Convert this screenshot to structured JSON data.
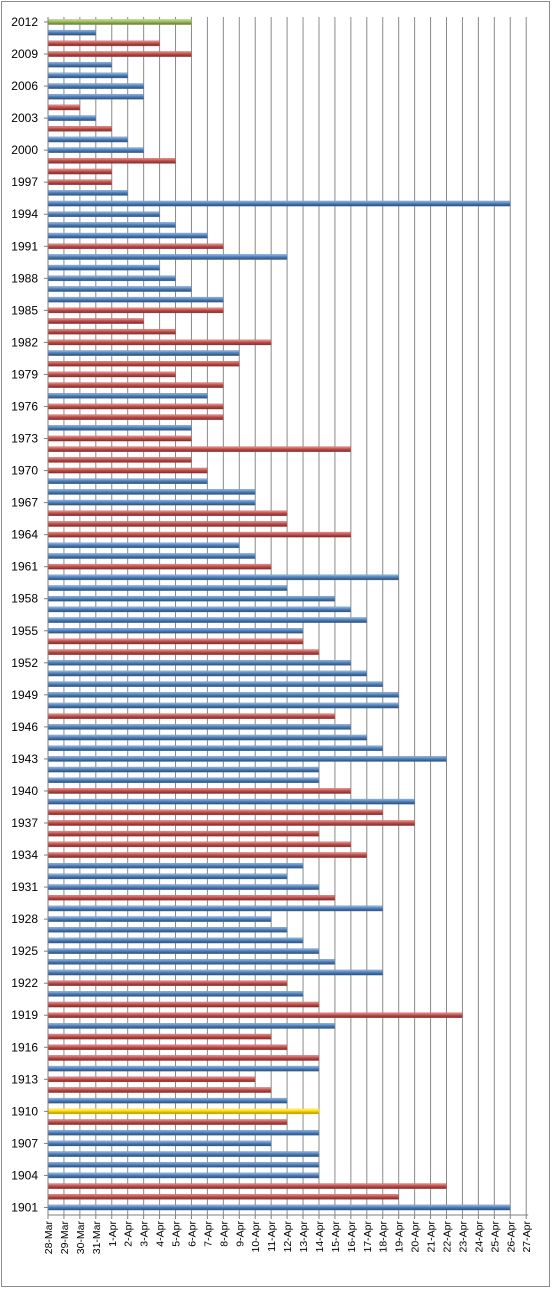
{
  "chart_data": {
    "type": "bar",
    "orientation": "horizontal",
    "grid": true,
    "legend": "none",
    "x_ticks": [
      "28-Mar",
      "29-Mar",
      "30-Mar",
      "31-Mar",
      "1-Apr",
      "2-Apr",
      "3-Apr",
      "4-Apr",
      "5-Apr",
      "6-Apr",
      "7-Apr",
      "8-Apr",
      "9-Apr",
      "10-Apr",
      "11-Apr",
      "12-Apr",
      "13-Apr",
      "14-Apr",
      "15-Apr",
      "16-Apr",
      "17-Apr",
      "18-Apr",
      "19-Apr",
      "20-Apr",
      "21-Apr",
      "22-Apr",
      "23-Apr",
      "24-Apr",
      "25-Apr",
      "26-Apr",
      "27-Apr"
    ],
    "y_tick_labels": [
      "2012",
      "2009",
      "2006",
      "2003",
      "2000",
      "1997",
      "1994",
      "1991",
      "1988",
      "1985",
      "1982",
      "1979",
      "1976",
      "1973",
      "1970",
      "1967",
      "1964",
      "1961",
      "1958",
      "1955",
      "1952",
      "1949",
      "1946",
      "1943",
      "1940",
      "1937",
      "1934",
      "1931",
      "1928",
      "1925",
      "1922",
      "1919",
      "1916",
      "1913",
      "1910",
      "1907",
      "1904",
      "1901"
    ],
    "colors": {
      "blue": "#4f81bd",
      "red": "#c0504d",
      "green": "#9bbb59",
      "yellow": "#ffd700"
    },
    "bars": [
      {
        "year": 1901,
        "date": "26-Apr",
        "color": "blue"
      },
      {
        "year": 1902,
        "date": "19-Apr",
        "color": "red"
      },
      {
        "year": 1903,
        "date": "22-Apr",
        "color": "red"
      },
      {
        "year": 1904,
        "date": "14-Apr",
        "color": "blue"
      },
      {
        "year": 1905,
        "date": "14-Apr",
        "color": "blue"
      },
      {
        "year": 1906,
        "date": "14-Apr",
        "color": "blue"
      },
      {
        "year": 1907,
        "date": "11-Apr",
        "color": "blue"
      },
      {
        "year": 1908,
        "date": "14-Apr",
        "color": "blue"
      },
      {
        "year": 1909,
        "date": "12-Apr",
        "color": "red"
      },
      {
        "year": 1910,
        "date": "14-Apr",
        "color": "yellow"
      },
      {
        "year": 1911,
        "date": "12-Apr",
        "color": "blue"
      },
      {
        "year": 1912,
        "date": "11-Apr",
        "color": "red"
      },
      {
        "year": 1913,
        "date": "10-Apr",
        "color": "red"
      },
      {
        "year": 1914,
        "date": "14-Apr",
        "color": "blue"
      },
      {
        "year": 1915,
        "date": "14-Apr",
        "color": "red"
      },
      {
        "year": 1916,
        "date": "12-Apr",
        "color": "red"
      },
      {
        "year": 1917,
        "date": "11-Apr",
        "color": "red"
      },
      {
        "year": 1918,
        "date": "15-Apr",
        "color": "blue"
      },
      {
        "year": 1919,
        "date": "23-Apr",
        "color": "red"
      },
      {
        "year": 1920,
        "date": "14-Apr",
        "color": "red"
      },
      {
        "year": 1921,
        "date": "13-Apr",
        "color": "blue"
      },
      {
        "year": 1922,
        "date": "12-Apr",
        "color": "red"
      },
      {
        "year": 1923,
        "date": "18-Apr",
        "color": "blue"
      },
      {
        "year": 1924,
        "date": "15-Apr",
        "color": "blue"
      },
      {
        "year": 1925,
        "date": "14-Apr",
        "color": "blue"
      },
      {
        "year": 1926,
        "date": "13-Apr",
        "color": "blue"
      },
      {
        "year": 1927,
        "date": "12-Apr",
        "color": "blue"
      },
      {
        "year": 1928,
        "date": "11-Apr",
        "color": "blue"
      },
      {
        "year": 1929,
        "date": "18-Apr",
        "color": "blue"
      },
      {
        "year": 1930,
        "date": "15-Apr",
        "color": "red"
      },
      {
        "year": 1931,
        "date": "14-Apr",
        "color": "blue"
      },
      {
        "year": 1932,
        "date": "12-Apr",
        "color": "blue"
      },
      {
        "year": 1933,
        "date": "13-Apr",
        "color": "blue"
      },
      {
        "year": 1934,
        "date": "17-Apr",
        "color": "red"
      },
      {
        "year": 1935,
        "date": "16-Apr",
        "color": "red"
      },
      {
        "year": 1936,
        "date": "14-Apr",
        "color": "red"
      },
      {
        "year": 1937,
        "date": "20-Apr",
        "color": "red"
      },
      {
        "year": 1938,
        "date": "18-Apr",
        "color": "red"
      },
      {
        "year": 1939,
        "date": "20-Apr",
        "color": "blue"
      },
      {
        "year": 1940,
        "date": "16-Apr",
        "color": "red"
      },
      {
        "year": 1941,
        "date": "14-Apr",
        "color": "blue"
      },
      {
        "year": 1942,
        "date": "14-Apr",
        "color": "blue"
      },
      {
        "year": 1943,
        "date": "22-Apr",
        "color": "blue"
      },
      {
        "year": 1944,
        "date": "18-Apr",
        "color": "blue"
      },
      {
        "year": 1945,
        "date": "17-Apr",
        "color": "blue"
      },
      {
        "year": 1946,
        "date": "16-Apr",
        "color": "blue"
      },
      {
        "year": 1947,
        "date": "15-Apr",
        "color": "red"
      },
      {
        "year": 1948,
        "date": "19-Apr",
        "color": "blue"
      },
      {
        "year": 1949,
        "date": "19-Apr",
        "color": "blue"
      },
      {
        "year": 1950,
        "date": "18-Apr",
        "color": "blue"
      },
      {
        "year": 1951,
        "date": "17-Apr",
        "color": "blue"
      },
      {
        "year": 1952,
        "date": "16-Apr",
        "color": "blue"
      },
      {
        "year": 1953,
        "date": "14-Apr",
        "color": "red"
      },
      {
        "year": 1954,
        "date": "13-Apr",
        "color": "red"
      },
      {
        "year": 1955,
        "date": "13-Apr",
        "color": "blue"
      },
      {
        "year": 1956,
        "date": "17-Apr",
        "color": "blue"
      },
      {
        "year": 1957,
        "date": "16-Apr",
        "color": "blue"
      },
      {
        "year": 1958,
        "date": "15-Apr",
        "color": "blue"
      },
      {
        "year": 1959,
        "date": "12-Apr",
        "color": "blue"
      },
      {
        "year": 1960,
        "date": "19-Apr",
        "color": "blue"
      },
      {
        "year": 1961,
        "date": "11-Apr",
        "color": "red"
      },
      {
        "year": 1962,
        "date": "10-Apr",
        "color": "blue"
      },
      {
        "year": 1963,
        "date": "9-Apr",
        "color": "blue"
      },
      {
        "year": 1964,
        "date": "16-Apr",
        "color": "red"
      },
      {
        "year": 1965,
        "date": "12-Apr",
        "color": "red"
      },
      {
        "year": 1966,
        "date": "12-Apr",
        "color": "red"
      },
      {
        "year": 1967,
        "date": "10-Apr",
        "color": "blue"
      },
      {
        "year": 1968,
        "date": "10-Apr",
        "color": "blue"
      },
      {
        "year": 1969,
        "date": "7-Apr",
        "color": "blue"
      },
      {
        "year": 1970,
        "date": "7-Apr",
        "color": "red"
      },
      {
        "year": 1971,
        "date": "6-Apr",
        "color": "red"
      },
      {
        "year": 1972,
        "date": "16-Apr",
        "color": "red"
      },
      {
        "year": 1973,
        "date": "6-Apr",
        "color": "red"
      },
      {
        "year": 1974,
        "date": "6-Apr",
        "color": "blue"
      },
      {
        "year": 1975,
        "date": "8-Apr",
        "color": "red"
      },
      {
        "year": 1976,
        "date": "8-Apr",
        "color": "red"
      },
      {
        "year": 1977,
        "date": "7-Apr",
        "color": "blue"
      },
      {
        "year": 1978,
        "date": "8-Apr",
        "color": "red"
      },
      {
        "year": 1979,
        "date": "5-Apr",
        "color": "red"
      },
      {
        "year": 1980,
        "date": "9-Apr",
        "color": "red"
      },
      {
        "year": 1981,
        "date": "9-Apr",
        "color": "blue"
      },
      {
        "year": 1982,
        "date": "11-Apr",
        "color": "red"
      },
      {
        "year": 1983,
        "date": "5-Apr",
        "color": "red"
      },
      {
        "year": 1984,
        "date": "3-Apr",
        "color": "red"
      },
      {
        "year": 1985,
        "date": "8-Apr",
        "color": "red"
      },
      {
        "year": 1986,
        "date": "8-Apr",
        "color": "blue"
      },
      {
        "year": 1987,
        "date": "6-Apr",
        "color": "blue"
      },
      {
        "year": 1988,
        "date": "5-Apr",
        "color": "blue"
      },
      {
        "year": 1989,
        "date": "4-Apr",
        "color": "blue"
      },
      {
        "year": 1990,
        "date": "12-Apr",
        "color": "blue"
      },
      {
        "year": 1991,
        "date": "8-Apr",
        "color": "red"
      },
      {
        "year": 1992,
        "date": "7-Apr",
        "color": "blue"
      },
      {
        "year": 1993,
        "date": "5-Apr",
        "color": "blue"
      },
      {
        "year": 1994,
        "date": "4-Apr",
        "color": "blue"
      },
      {
        "year": 1995,
        "date": "26-Apr",
        "color": "blue"
      },
      {
        "year": 1996,
        "date": "2-Apr",
        "color": "blue"
      },
      {
        "year": 1997,
        "date": "1-Apr",
        "color": "red"
      },
      {
        "year": 1998,
        "date": "1-Apr",
        "color": "red"
      },
      {
        "year": 1999,
        "date": "5-Apr",
        "color": "red"
      },
      {
        "year": 2000,
        "date": "3-Apr",
        "color": "blue"
      },
      {
        "year": 2001,
        "date": "2-Apr",
        "color": "blue"
      },
      {
        "year": 2002,
        "date": "1-Apr",
        "color": "red"
      },
      {
        "year": 2003,
        "date": "31-Mar",
        "color": "blue"
      },
      {
        "year": 2004,
        "date": "30-Mar",
        "color": "red"
      },
      {
        "year": 2005,
        "date": "3-Apr",
        "color": "blue"
      },
      {
        "year": 2006,
        "date": "3-Apr",
        "color": "blue"
      },
      {
        "year": 2007,
        "date": "2-Apr",
        "color": "blue"
      },
      {
        "year": 2008,
        "date": "1-Apr",
        "color": "blue"
      },
      {
        "year": 2009,
        "date": "6-Apr",
        "color": "red"
      },
      {
        "year": 2010,
        "date": "4-Apr",
        "color": "red"
      },
      {
        "year": 2011,
        "date": "31-Mar",
        "color": "blue"
      },
      {
        "year": 2012,
        "date": "6-Apr",
        "color": "green"
      }
    ]
  }
}
